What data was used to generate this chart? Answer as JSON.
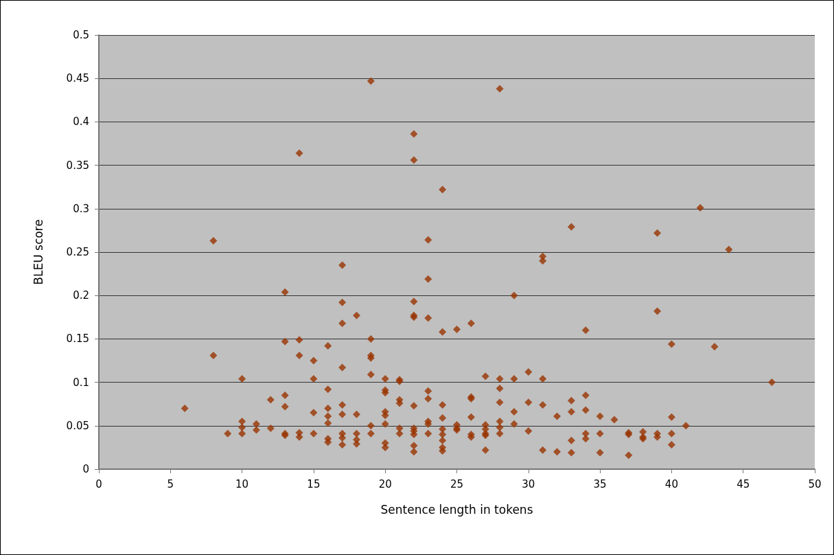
{
  "chart_data": {
    "type": "scatter",
    "xlabel": "Sentence length in tokens",
    "ylabel": "BLEU score",
    "x": [
      6,
      8,
      8,
      9,
      10,
      10,
      10,
      10,
      11,
      11,
      12,
      12,
      13,
      13,
      13,
      13,
      13,
      13,
      14,
      14,
      14,
      14,
      14,
      15,
      15,
      15,
      15,
      16,
      16,
      16,
      16,
      16,
      16,
      16,
      17,
      17,
      17,
      17,
      17,
      17,
      17,
      17,
      17,
      18,
      18,
      18,
      18,
      18,
      19,
      19,
      19,
      19,
      19,
      19,
      19,
      20,
      20,
      20,
      20,
      20,
      20,
      20,
      20,
      21,
      21,
      21,
      21,
      21,
      21,
      22,
      22,
      22,
      22,
      22,
      22,
      22,
      22,
      22,
      22,
      22,
      23,
      23,
      23,
      23,
      23,
      23,
      23,
      23,
      24,
      24,
      24,
      24,
      24,
      24,
      24,
      24,
      24,
      25,
      25,
      25,
      25,
      26,
      26,
      26,
      26,
      26,
      26,
      27,
      27,
      27,
      27,
      27,
      27,
      28,
      28,
      28,
      28,
      28,
      28,
      28,
      29,
      29,
      29,
      29,
      30,
      30,
      30,
      31,
      31,
      31,
      31,
      31,
      32,
      32,
      33,
      33,
      33,
      33,
      33,
      34,
      34,
      34,
      34,
      34,
      35,
      35,
      35,
      36,
      37,
      37,
      37,
      38,
      38,
      38,
      39,
      39,
      39,
      39,
      40,
      40,
      40,
      40,
      41,
      42,
      43,
      44,
      47
    ],
    "values": [
      0.07,
      0.263,
      0.131,
      0.041,
      0.104,
      0.055,
      0.048,
      0.041,
      0.052,
      0.045,
      0.08,
      0.047,
      0.204,
      0.147,
      0.085,
      0.072,
      0.041,
      0.039,
      0.364,
      0.149,
      0.131,
      0.042,
      0.037,
      0.125,
      0.104,
      0.065,
      0.041,
      0.142,
      0.092,
      0.07,
      0.061,
      0.053,
      0.035,
      0.031,
      0.235,
      0.192,
      0.168,
      0.117,
      0.074,
      0.063,
      0.041,
      0.036,
      0.028,
      0.177,
      0.063,
      0.041,
      0.034,
      0.029,
      0.447,
      0.15,
      0.131,
      0.128,
      0.109,
      0.05,
      0.041,
      0.104,
      0.091,
      0.088,
      0.066,
      0.062,
      0.052,
      0.03,
      0.025,
      0.103,
      0.101,
      0.08,
      0.076,
      0.047,
      0.041,
      0.386,
      0.356,
      0.193,
      0.177,
      0.175,
      0.073,
      0.047,
      0.044,
      0.04,
      0.027,
      0.02,
      0.264,
      0.219,
      0.174,
      0.09,
      0.081,
      0.055,
      0.052,
      0.041,
      0.322,
      0.158,
      0.074,
      0.059,
      0.046,
      0.04,
      0.033,
      0.025,
      0.021,
      0.161,
      0.051,
      0.047,
      0.045,
      0.168,
      0.083,
      0.081,
      0.06,
      0.04,
      0.037,
      0.107,
      0.051,
      0.046,
      0.041,
      0.039,
      0.022,
      0.438,
      0.104,
      0.093,
      0.077,
      0.055,
      0.048,
      0.041,
      0.2,
      0.104,
      0.066,
      0.052,
      0.112,
      0.077,
      0.044,
      0.245,
      0.24,
      0.104,
      0.074,
      0.022,
      0.061,
      0.02,
      0.279,
      0.079,
      0.066,
      0.033,
      0.019,
      0.16,
      0.085,
      0.068,
      0.041,
      0.035,
      0.061,
      0.041,
      0.019,
      0.057,
      0.042,
      0.04,
      0.016,
      0.043,
      0.037,
      0.035,
      0.272,
      0.182,
      0.041,
      0.037,
      0.144,
      0.06,
      0.041,
      0.028,
      0.05,
      0.301,
      0.141,
      0.253,
      0.1
    ],
    "color": "#993300",
    "marker": "diamond",
    "grid": "y",
    "xlim": [
      0,
      50
    ],
    "xticks": [
      0,
      5,
      10,
      15,
      20,
      25,
      30,
      35,
      40,
      45,
      50
    ],
    "ylim": [
      0,
      0.5
    ],
    "yticks": [
      0,
      0.05,
      0.1,
      0.15,
      0.2,
      0.25,
      0.3,
      0.35,
      0.4,
      0.45,
      0.5
    ]
  }
}
